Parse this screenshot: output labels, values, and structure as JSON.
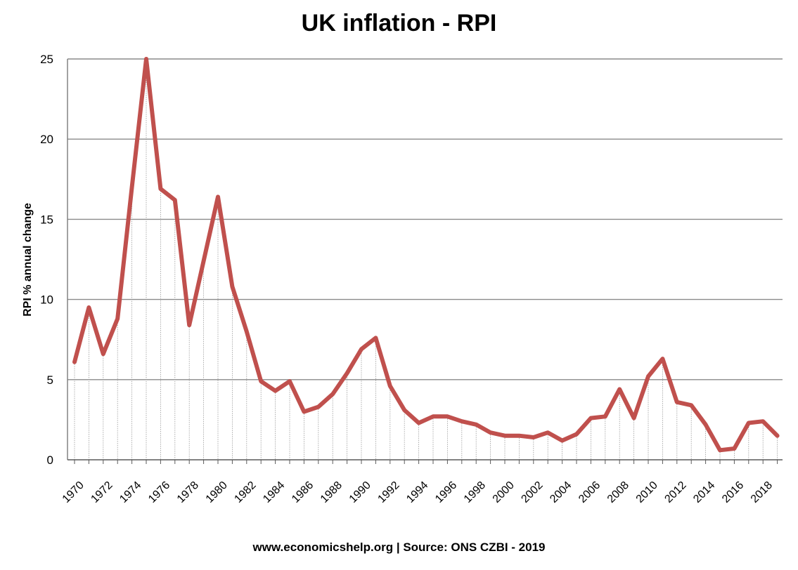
{
  "chart_data": {
    "type": "line",
    "title": "UK inflation - RPI",
    "ylabel": "RPI % annual change",
    "xlabel": "",
    "source": "www.economicshelp.org | Source: ONS CZBI - 2019",
    "ylim": [
      0,
      25
    ],
    "yticks": [
      0,
      5,
      10,
      15,
      20,
      25
    ],
    "grid": "horizontal",
    "legend": "none",
    "line_color": "#c0504d",
    "x": [
      1970,
      1971,
      1972,
      1973,
      1974,
      1975,
      1976,
      1977,
      1978,
      1979,
      1980,
      1981,
      1982,
      1983,
      1984,
      1985,
      1986,
      1987,
      1988,
      1989,
      1990,
      1991,
      1992,
      1993,
      1994,
      1995,
      1996,
      1997,
      1998,
      1999,
      2000,
      2001,
      2002,
      2003,
      2004,
      2005,
      2006,
      2007,
      2008,
      2009,
      2010,
      2011,
      2012,
      2013,
      2014,
      2015,
      2016,
      2017,
      2018,
      2019
    ],
    "xtick_labels": [
      "1970",
      "1972",
      "1974",
      "1976",
      "1978",
      "1980",
      "1982",
      "1984",
      "1986",
      "1988",
      "1990",
      "1992",
      "1994",
      "1996",
      "1998",
      "2000",
      "2002",
      "2004",
      "2006",
      "2008",
      "2010",
      "2012",
      "2014",
      "2016",
      "2018"
    ],
    "series": [
      {
        "values": [
          6.1,
          9.5,
          6.6,
          8.8,
          17.0,
          25.0,
          16.9,
          16.2,
          8.4,
          12.4,
          16.4,
          10.8,
          8.0,
          4.9,
          4.3,
          4.9,
          3.0,
          3.3,
          4.1,
          5.4,
          6.9,
          7.6,
          4.6,
          3.1,
          2.3,
          2.7,
          2.7,
          2.4,
          2.2,
          1.7,
          1.5,
          1.5,
          1.4,
          1.7,
          1.2,
          1.6,
          2.6,
          2.7,
          4.4,
          2.6,
          5.2,
          6.3,
          3.6,
          3.4,
          2.2,
          0.6,
          0.7,
          2.3,
          2.4,
          1.5
        ]
      }
    ]
  }
}
